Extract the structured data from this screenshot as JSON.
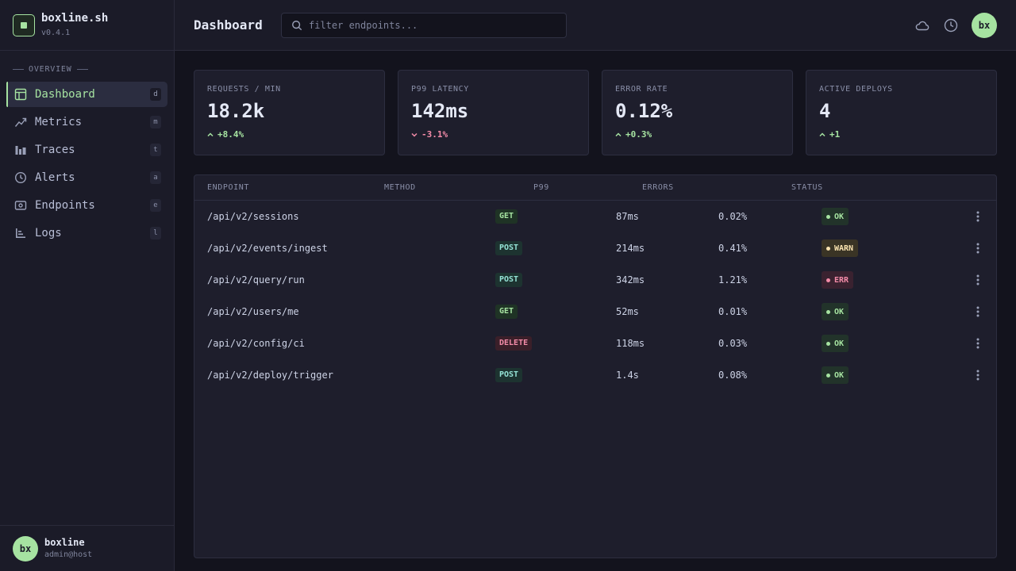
{
  "brand": {
    "name": "boxline.sh",
    "version": "v0.4.1"
  },
  "sidebar": {
    "section_label": "OVERVIEW",
    "items": [
      {
        "label": "Dashboard",
        "key": "d",
        "icon": "dashboard-icon",
        "active": true
      },
      {
        "label": "Metrics",
        "key": "m",
        "icon": "trend-icon",
        "active": false
      },
      {
        "label": "Traces",
        "key": "t",
        "icon": "bar-chart-icon",
        "active": false
      },
      {
        "label": "Alerts",
        "key": "a",
        "icon": "clock-icon",
        "active": false
      },
      {
        "label": "Endpoints",
        "key": "e",
        "icon": "endpoint-icon",
        "active": false
      },
      {
        "label": "Logs",
        "key": "l",
        "icon": "logs-icon",
        "active": false
      }
    ],
    "user": {
      "initials": "bx",
      "name": "boxline",
      "host": "admin@host"
    }
  },
  "header": {
    "title": "Dashboard",
    "search_placeholder": "filter endpoints...",
    "avatar_initials": "bx"
  },
  "stats": [
    {
      "label": "REQUESTS / MIN",
      "value": "18.2k",
      "delta": "+8.4%",
      "trend": "up"
    },
    {
      "label": "P99 LATENCY",
      "value": "142ms",
      "delta": "-3.1%",
      "trend": "down"
    },
    {
      "label": "ERROR RATE",
      "value": "0.12%",
      "delta": "+0.3%",
      "trend": "up"
    },
    {
      "label": "ACTIVE DEPLOYS",
      "value": "4",
      "delta": "+1",
      "trend": "up"
    }
  ],
  "table": {
    "columns": [
      "ENDPOINT",
      "METHOD",
      "P99",
      "ERRORS",
      "STATUS"
    ],
    "rows": [
      {
        "endpoint": "/api/v2/sessions",
        "method": "GET",
        "p99": "87ms",
        "errors": "0.02%",
        "status": "OK"
      },
      {
        "endpoint": "/api/v2/events/ingest",
        "method": "POST",
        "p99": "214ms",
        "errors": "0.41%",
        "status": "WARN"
      },
      {
        "endpoint": "/api/v2/query/run",
        "method": "POST",
        "p99": "342ms",
        "errors": "1.21%",
        "status": "ERR"
      },
      {
        "endpoint": "/api/v2/users/me",
        "method": "GET",
        "p99": "52ms",
        "errors": "0.01%",
        "status": "OK"
      },
      {
        "endpoint": "/api/v2/config/ci",
        "method": "DELETE",
        "p99": "118ms",
        "errors": "0.03%",
        "status": "OK"
      },
      {
        "endpoint": "/api/v2/deploy/trigger",
        "method": "POST",
        "p99": "1.4s",
        "errors": "0.08%",
        "status": "OK"
      }
    ]
  },
  "colors": {
    "accent": "#a6e3a1",
    "danger": "#f38ba8",
    "warning": "#f9e2af",
    "background": "#13131d",
    "panel": "#1e1e2c"
  }
}
